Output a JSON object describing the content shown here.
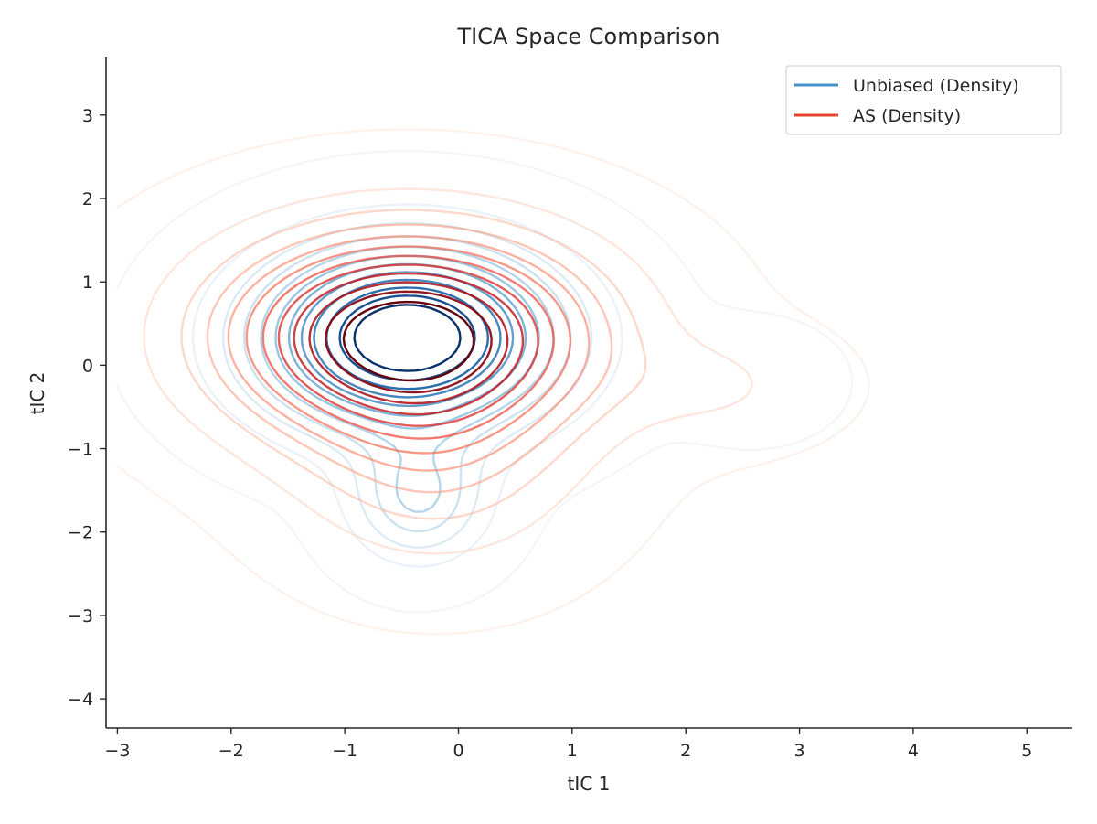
{
  "chart_data": {
    "type": "contour",
    "title": "TICA Space Comparison",
    "xlabel": "tIC 1",
    "ylabel": "tIC 2",
    "xlim": [
      -3.1,
      5.4
    ],
    "ylim": [
      -4.35,
      3.7
    ],
    "x_ticks": [
      -3,
      -2,
      -1,
      0,
      1,
      2,
      3,
      4,
      5
    ],
    "y_ticks": [
      -4,
      -3,
      -2,
      -1,
      0,
      1,
      2,
      3
    ],
    "x_tick_labels": [
      "−3",
      "−2",
      "−1",
      "0",
      "1",
      "2",
      "3",
      "4",
      "5"
    ],
    "y_tick_labels": [
      "−4",
      "−3",
      "−2",
      "−1",
      "0",
      "1",
      "2",
      "3"
    ],
    "grid": false,
    "legend_position": "top-right",
    "legend": [
      {
        "label": "Unbiased (Density)",
        "color": "#4292c6"
      },
      {
        "label": "AS (Density)",
        "color": "#e5432e"
      }
    ],
    "series": [
      {
        "name": "Unbiased (Density)",
        "colormap": "Blues",
        "levels": 12,
        "components": [
          {
            "mx": -0.45,
            "my": 0.33,
            "sx": 0.85,
            "sy": 0.72,
            "w": 1.0
          },
          {
            "mx": -0.35,
            "my": -1.6,
            "sx": 0.4,
            "sy": 0.5,
            "w": 0.32
          },
          {
            "mx": 2.6,
            "my": -0.2,
            "sx": 0.45,
            "sy": 0.42,
            "w": 0.05
          }
        ]
      },
      {
        "name": "AS (Density)",
        "colormap": "Reds",
        "levels": 12,
        "components": [
          {
            "mx": -0.45,
            "my": 0.35,
            "sx": 1.05,
            "sy": 0.8,
            "w": 1.0
          },
          {
            "mx": -0.2,
            "my": -1.2,
            "sx": 0.8,
            "sy": 0.8,
            "w": 0.2
          },
          {
            "mx": 2.3,
            "my": -0.25,
            "sx": 0.6,
            "sy": 0.42,
            "w": 0.085
          }
        ]
      }
    ]
  }
}
